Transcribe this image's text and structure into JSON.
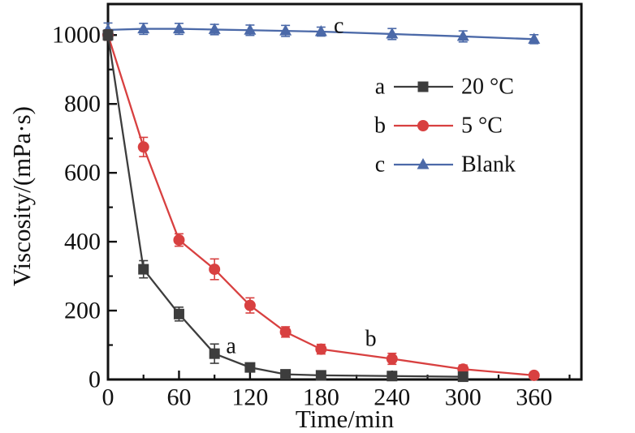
{
  "chart_data": {
    "type": "line",
    "title": "",
    "xlabel": "Time/min",
    "ylabel": "Viscosity/(mPa·s)",
    "xlim": [
      0,
      400
    ],
    "ylim": [
      0,
      1090
    ],
    "x_major_ticks": [
      0,
      60,
      120,
      180,
      240,
      300,
      360
    ],
    "x_minor_ticks": [
      30,
      90,
      150,
      210,
      270,
      330,
      390
    ],
    "y_major_ticks": [
      0,
      200,
      400,
      600,
      800,
      1000
    ],
    "y_minor_ticks": [
      100,
      300,
      500,
      700,
      900
    ],
    "grid": false,
    "legend_position": "upper-right-inside",
    "axis_color": "#111111",
    "series": [
      {
        "id": "c",
        "name": "Blank",
        "curve_label": "c",
        "color": "#4b69a8",
        "marker": "triangle",
        "x": [
          0,
          30,
          60,
          90,
          120,
          150,
          180,
          240,
          300,
          360
        ],
        "y": [
          1015,
          1018,
          1018,
          1016,
          1014,
          1012,
          1010,
          1003,
          996,
          988
        ],
        "yerr": [
          20,
          16,
          16,
          15,
          15,
          16,
          13,
          16,
          16,
          13
        ]
      },
      {
        "id": "b",
        "name": "5 °C",
        "curve_label": "b",
        "color": "#d84040",
        "marker": "circle",
        "x": [
          0,
          30,
          60,
          90,
          120,
          150,
          180,
          240,
          300,
          360
        ],
        "y": [
          1000,
          675,
          405,
          320,
          215,
          138,
          88,
          60,
          30,
          12
        ],
        "yerr": [
          15,
          28,
          18,
          30,
          22,
          15,
          14,
          16,
          12,
          9
        ]
      },
      {
        "id": "a",
        "name": "20 °C",
        "curve_label": "a",
        "color": "#3d3d3d",
        "marker": "square",
        "x": [
          0,
          30,
          60,
          90,
          120,
          150,
          180,
          240,
          300
        ],
        "y": [
          1000,
          320,
          190,
          75,
          35,
          15,
          12,
          10,
          8
        ],
        "yerr": [
          15,
          25,
          20,
          28,
          12,
          8,
          6,
          8,
          5
        ]
      }
    ],
    "annotations": [
      {
        "text": "a",
        "x": 104,
        "y": 96
      },
      {
        "text": "b",
        "x": 222,
        "y": 118
      },
      {
        "text": "c",
        "x": 195,
        "y": 1026
      }
    ],
    "legend": [
      {
        "prefix": "a",
        "label": "20 °C",
        "series": "a"
      },
      {
        "prefix": "b",
        "label": "5 °C",
        "series": "b"
      },
      {
        "prefix": "c",
        "label": "Blank",
        "series": "c"
      }
    ]
  }
}
